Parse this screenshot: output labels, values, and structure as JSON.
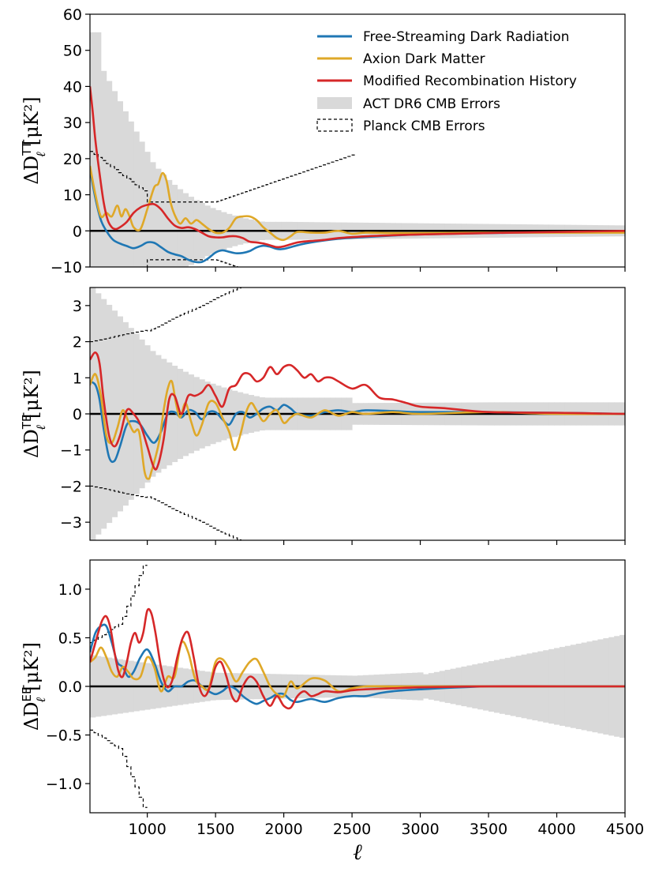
{
  "chart_data": [
    {
      "type": "line",
      "ylabel_main": "ΔD",
      "ylabel_sup": "TT",
      "ylabel_sub": "ℓ",
      "ylabel_units": "[μK²]",
      "xlim": [
        580,
        4500
      ],
      "ylim": [
        -10,
        60
      ],
      "yticks": [
        -10,
        0,
        10,
        20,
        30,
        40,
        50,
        60
      ],
      "ytick_labels": [
        "−10",
        "0",
        "10",
        "20",
        "30",
        "40",
        "50",
        "60"
      ],
      "series": [
        {
          "name": "Free-Streaming Dark Radiation",
          "color": "#1f77b4",
          "x": [
            580,
            620,
            660,
            700,
            750,
            800,
            850,
            900,
            950,
            1000,
            1050,
            1100,
            1150,
            1200,
            1250,
            1300,
            1350,
            1400,
            1450,
            1500,
            1550,
            1600,
            1650,
            1700,
            1750,
            1800,
            1850,
            1900,
            1950,
            2000,
            2100,
            2200,
            2400,
            2600,
            2800,
            3000,
            3500,
            4000,
            4500
          ],
          "y": [
            17,
            9,
            3,
            0,
            -2.5,
            -3.5,
            -4.2,
            -4.8,
            -4.2,
            -3.2,
            -3.3,
            -4.5,
            -5.8,
            -6.5,
            -7,
            -8,
            -8.6,
            -8.6,
            -7.5,
            -6,
            -5.4,
            -5.8,
            -6.2,
            -6.1,
            -5.6,
            -4.6,
            -4.1,
            -4.4,
            -5,
            -5,
            -4,
            -3.2,
            -2.2,
            -1.7,
            -1.3,
            -1,
            -0.6,
            -0.4,
            -0.3
          ]
        },
        {
          "name": "Axion Dark Matter",
          "color": "#dfa828",
          "x": [
            580,
            620,
            660,
            700,
            740,
            780,
            810,
            840,
            870,
            900,
            950,
            1000,
            1050,
            1080,
            1110,
            1140,
            1170,
            1200,
            1240,
            1280,
            1320,
            1360,
            1400,
            1450,
            1500,
            1550,
            1600,
            1650,
            1700,
            1750,
            1800,
            1850,
            1900,
            1950,
            2000,
            2050,
            2100,
            2200,
            2300,
            2400,
            2500,
            2600,
            2800,
            3000,
            3500,
            4000,
            4500
          ],
          "y": [
            18,
            10,
            4,
            5,
            4,
            7,
            4,
            6,
            4,
            1,
            0.5,
            6,
            12,
            13,
            16,
            14,
            8,
            4.5,
            2,
            3.5,
            2,
            3,
            2,
            0.5,
            -0.5,
            -0.5,
            0.8,
            3.5,
            4,
            4,
            3,
            1,
            -0.5,
            -2,
            -2.5,
            -1.5,
            -0.3,
            -0.5,
            -0.5,
            0,
            -0.8,
            -0.5,
            -0.6,
            -0.6,
            -0.5,
            -0.5,
            -0.5
          ]
        },
        {
          "name": "Modified Recombination History",
          "color": "#d62728",
          "x": [
            580,
            600,
            620,
            650,
            680,
            710,
            740,
            770,
            800,
            850,
            900,
            950,
            1000,
            1050,
            1100,
            1150,
            1200,
            1250,
            1300,
            1350,
            1400,
            1450,
            1500,
            1550,
            1600,
            1650,
            1700,
            1750,
            1800,
            1850,
            1900,
            1950,
            2000,
            2100,
            2200,
            2300,
            2400,
            2600,
            2800,
            3000,
            3500,
            4000,
            4500
          ],
          "y": [
            40,
            33,
            25,
            16,
            8,
            3,
            1,
            0.5,
            1,
            2.5,
            5,
            6.5,
            7.2,
            7.4,
            6,
            3.5,
            1.5,
            0.8,
            1,
            0.5,
            -0.5,
            -1.5,
            -1.8,
            -1.8,
            -1.5,
            -1.5,
            -2,
            -3,
            -3.2,
            -3.5,
            -4,
            -4.5,
            -4.3,
            -3.2,
            -2.8,
            -2.5,
            -2,
            -1.5,
            -1.2,
            -1,
            -0.6,
            -0.3,
            0
          ]
        }
      ]
    },
    {
      "type": "line",
      "ylabel_main": "ΔD",
      "ylabel_sup": "TE",
      "ylabel_sub": "ℓ",
      "ylabel_units": "[μK²]",
      "xlim": [
        580,
        4500
      ],
      "ylim": [
        -3.5,
        3.5
      ],
      "yticks": [
        -3,
        -2,
        -1,
        0,
        1,
        2,
        3
      ],
      "ytick_labels": [
        "−3",
        "−2",
        "−1",
        "0",
        "1",
        "2",
        "3"
      ],
      "series": [
        {
          "name": "Free-Streaming Dark Radiation",
          "color": "#1f77b4",
          "x": [
            580,
            620,
            650,
            680,
            720,
            760,
            800,
            850,
            900,
            950,
            1000,
            1050,
            1100,
            1150,
            1200,
            1250,
            1300,
            1350,
            1400,
            1450,
            1500,
            1550,
            1600,
            1650,
            1700,
            1750,
            1800,
            1850,
            1900,
            1950,
            2000,
            2050,
            2100,
            2200,
            2300,
            2400,
            2500,
            2600,
            2800,
            3000,
            3500,
            4000,
            4500
          ],
          "y": [
            0.9,
            0.8,
            0.4,
            -0.4,
            -1.2,
            -1.3,
            -0.9,
            -0.3,
            -0.2,
            -0.3,
            -0.6,
            -0.8,
            -0.5,
            0,
            0.05,
            -0.1,
            0.1,
            0.05,
            -0.15,
            0.05,
            0.05,
            -0.15,
            -0.3,
            0,
            0.05,
            -0.1,
            0,
            0.15,
            0.2,
            0.1,
            0.25,
            0.15,
            0,
            -0.05,
            0.05,
            0.1,
            0.05,
            0.1,
            0.08,
            0.05,
            0.05,
            0.03,
            0
          ]
        },
        {
          "name": "Axion Dark Matter",
          "color": "#dfa828",
          "x": [
            580,
            620,
            660,
            700,
            740,
            780,
            820,
            860,
            900,
            940,
            980,
            1010,
            1030,
            1060,
            1090,
            1120,
            1150,
            1180,
            1210,
            1240,
            1280,
            1320,
            1360,
            1400,
            1450,
            1500,
            1550,
            1600,
            1640,
            1680,
            1720,
            1760,
            1800,
            1850,
            1900,
            1950,
            2000,
            2050,
            2100,
            2200,
            2300,
            2400,
            2500,
            2600,
            2800,
            3000,
            3500,
            4000,
            4500
          ],
          "y": [
            0.8,
            1.1,
            0.5,
            -0.6,
            -0.8,
            -0.4,
            0.1,
            -0.2,
            -0.5,
            -0.5,
            -1.6,
            -1.8,
            -1.6,
            -1.2,
            -0.7,
            0.1,
            0.7,
            0.9,
            0.3,
            -0.1,
            0.3,
            -0.2,
            -0.6,
            -0.3,
            0.3,
            0.3,
            -0.1,
            -0.5,
            -1,
            -0.6,
            0,
            0.3,
            0.1,
            -0.2,
            0,
            0.1,
            -0.25,
            -0.1,
            0,
            -0.1,
            0.1,
            -0.05,
            0.05,
            0,
            0.05,
            0,
            0.05,
            0,
            0
          ]
        },
        {
          "name": "Modified Recombination History",
          "color": "#d62728",
          "x": [
            580,
            620,
            650,
            680,
            720,
            760,
            800,
            850,
            900,
            950,
            1000,
            1050,
            1080,
            1120,
            1160,
            1200,
            1250,
            1300,
            1350,
            1400,
            1450,
            1500,
            1550,
            1600,
            1650,
            1700,
            1750,
            1800,
            1850,
            1900,
            1950,
            2000,
            2050,
            2100,
            2150,
            2200,
            2250,
            2300,
            2350,
            2400,
            2500,
            2600,
            2700,
            2800,
            2900,
            3000,
            3200,
            3500,
            4000,
            4500
          ],
          "y": [
            1.5,
            1.7,
            1.4,
            0.4,
            -0.6,
            -0.9,
            -0.6,
            0.1,
            0,
            -0.3,
            -0.9,
            -1.5,
            -1.4,
            -0.7,
            0.4,
            0.5,
            0,
            0.5,
            0.5,
            0.6,
            0.8,
            0.5,
            0.2,
            0.7,
            0.8,
            1.1,
            1.1,
            0.9,
            1,
            1.3,
            1.1,
            1.3,
            1.35,
            1.2,
            1,
            1.1,
            0.9,
            1,
            1,
            0.9,
            0.7,
            0.8,
            0.45,
            0.4,
            0.3,
            0.2,
            0.15,
            0.05,
            0.03,
            0
          ]
        }
      ]
    },
    {
      "type": "line",
      "ylabel_main": "ΔD",
      "ylabel_sup": "EE",
      "ylabel_sub": "ℓ",
      "ylabel_units": "[μK²]",
      "xlim": [
        580,
        4500
      ],
      "ylim": [
        -1.3,
        1.3
      ],
      "yticks": [
        -1,
        -0.5,
        0,
        0.5,
        1
      ],
      "ytick_labels": [
        "−1.0",
        "−0.5",
        "0.0",
        "0.5",
        "1.0"
      ],
      "xticks": [
        1000,
        1500,
        2000,
        2500,
        3000,
        3500,
        4000,
        4500
      ],
      "xtick_labels": [
        "1000",
        "1500",
        "2000",
        "2500",
        "3000",
        "3500",
        "4000",
        "4500"
      ],
      "xlabel": "ℓ",
      "series": [
        {
          "name": "Free-Streaming Dark Radiation",
          "color": "#1f77b4",
          "x": [
            580,
            620,
            660,
            700,
            740,
            780,
            820,
            860,
            900,
            950,
            1000,
            1050,
            1100,
            1150,
            1200,
            1250,
            1300,
            1350,
            1400,
            1450,
            1500,
            1550,
            1600,
            1650,
            1700,
            1750,
            1800,
            1850,
            1900,
            1950,
            2000,
            2050,
            2100,
            2200,
            2300,
            2400,
            2500,
            2600,
            2700,
            2800,
            3000,
            3500,
            4000,
            4500
          ],
          "y": [
            0.35,
            0.55,
            0.62,
            0.62,
            0.45,
            0.25,
            0.2,
            0.1,
            0.15,
            0.3,
            0.38,
            0.25,
            0.05,
            -0.05,
            0,
            0,
            0.05,
            0.06,
            0,
            -0.05,
            -0.08,
            -0.05,
            0,
            -0.03,
            -0.1,
            -0.15,
            -0.18,
            -0.15,
            -0.12,
            -0.08,
            -0.08,
            -0.14,
            -0.16,
            -0.13,
            -0.16,
            -0.12,
            -0.1,
            -0.1,
            -0.07,
            -0.05,
            -0.03,
            0,
            0,
            0
          ]
        },
        {
          "name": "Axion Dark Matter",
          "color": "#dfa828",
          "x": [
            580,
            620,
            660,
            700,
            740,
            780,
            820,
            860,
            900,
            950,
            1000,
            1050,
            1100,
            1150,
            1200,
            1250,
            1300,
            1350,
            1400,
            1450,
            1500,
            1550,
            1600,
            1650,
            1700,
            1750,
            1800,
            1850,
            1900,
            1950,
            2000,
            2050,
            2100,
            2200,
            2300,
            2400,
            2500,
            2600,
            2800,
            3000,
            3500,
            4000,
            4500
          ],
          "y": [
            0.25,
            0.3,
            0.4,
            0.3,
            0.15,
            0.1,
            0.2,
            0.15,
            0.08,
            0.1,
            0.3,
            0.2,
            -0.05,
            0.1,
            0.1,
            0.45,
            0.35,
            0.08,
            0,
            -0.02,
            0.25,
            0.28,
            0.18,
            0.05,
            0.15,
            0.25,
            0.28,
            0.15,
            0,
            -0.08,
            -0.1,
            0.05,
            -0.02,
            0.08,
            0.06,
            -0.05,
            -0.02,
            0,
            0,
            0,
            0,
            0,
            0
          ]
        },
        {
          "name": "Modified Recombination History",
          "color": "#d62728",
          "x": [
            580,
            610,
            640,
            670,
            700,
            730,
            760,
            790,
            820,
            850,
            880,
            910,
            940,
            970,
            1000,
            1030,
            1060,
            1100,
            1140,
            1180,
            1220,
            1260,
            1300,
            1340,
            1380,
            1420,
            1460,
            1500,
            1540,
            1580,
            1620,
            1660,
            1700,
            1750,
            1800,
            1850,
            1900,
            1950,
            2000,
            2050,
            2100,
            2150,
            2200,
            2250,
            2300,
            2400,
            2500,
            2600,
            2800,
            3000,
            3500,
            4000,
            4500
          ],
          "y": [
            0.25,
            0.4,
            0.55,
            0.68,
            0.72,
            0.6,
            0.35,
            0.15,
            0.1,
            0.25,
            0.45,
            0.55,
            0.45,
            0.55,
            0.78,
            0.75,
            0.55,
            0.2,
            0,
            0.05,
            0.3,
            0.5,
            0.55,
            0.3,
            0,
            -0.1,
            0,
            0.2,
            0.25,
            0.1,
            -0.1,
            -0.15,
            0,
            0.1,
            0.05,
            -0.1,
            -0.2,
            -0.1,
            -0.2,
            -0.22,
            -0.1,
            -0.05,
            -0.1,
            -0.08,
            -0.05,
            -0.06,
            -0.04,
            -0.03,
            -0.02,
            -0.01,
            0,
            0,
            0
          ]
        }
      ]
    }
  ],
  "legend": {
    "entries": [
      {
        "label": "Free-Streaming Dark Radiation",
        "kind": "line",
        "color": "#1f77b4"
      },
      {
        "label": "Axion Dark Matter",
        "kind": "line",
        "color": "#dfa828"
      },
      {
        "label": "Modified Recombination History",
        "kind": "line",
        "color": "#d62728"
      },
      {
        "label": "ACT DR6 CMB Errors",
        "kind": "patch",
        "color": "#d9d9d9"
      },
      {
        "label": "Planck CMB Errors",
        "kind": "dashed",
        "color": "#000000"
      }
    ]
  },
  "colors": {
    "act_band": "#d9d9d9",
    "zero_line": "#000000",
    "planck": "#000000"
  }
}
